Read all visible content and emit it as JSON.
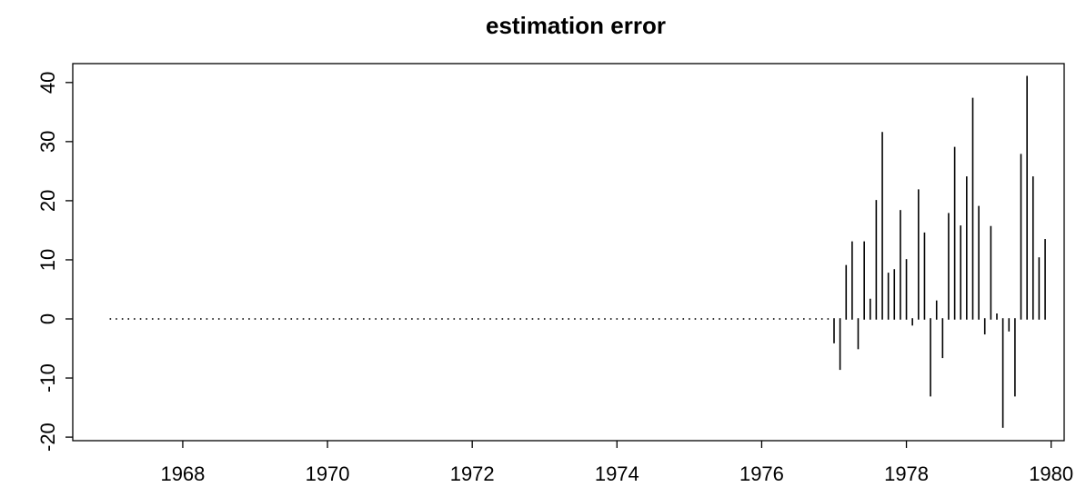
{
  "chart_data": {
    "type": "spike",
    "title": "estimation error",
    "color": "#000000",
    "x": [
      1967,
      1967.083,
      1967.167,
      1967.25,
      1967.333,
      1967.417,
      1967.5,
      1967.583,
      1967.667,
      1967.75,
      1967.833,
      1967.917,
      1968,
      1968.083,
      1968.167,
      1968.25,
      1968.333,
      1968.417,
      1968.5,
      1968.583,
      1968.667,
      1968.75,
      1968.833,
      1968.917,
      1969,
      1969.083,
      1969.167,
      1969.25,
      1969.333,
      1969.417,
      1969.5,
      1969.583,
      1969.667,
      1969.75,
      1969.833,
      1969.917,
      1970,
      1970.083,
      1970.167,
      1970.25,
      1970.333,
      1970.417,
      1970.5,
      1970.583,
      1970.667,
      1970.75,
      1970.833,
      1970.917,
      1971,
      1971.083,
      1971.167,
      1971.25,
      1971.333,
      1971.417,
      1971.5,
      1971.583,
      1971.667,
      1971.75,
      1971.833,
      1971.917,
      1972,
      1972.083,
      1972.167,
      1972.25,
      1972.333,
      1972.417,
      1972.5,
      1972.583,
      1972.667,
      1972.75,
      1972.833,
      1972.917,
      1973,
      1973.083,
      1973.167,
      1973.25,
      1973.333,
      1973.417,
      1973.5,
      1973.583,
      1973.667,
      1973.75,
      1973.833,
      1973.917,
      1974,
      1974.083,
      1974.167,
      1974.25,
      1974.333,
      1974.417,
      1974.5,
      1974.583,
      1974.667,
      1974.75,
      1974.833,
      1974.917,
      1975,
      1975.083,
      1975.167,
      1975.25,
      1975.333,
      1975.417,
      1975.5,
      1975.583,
      1975.667,
      1975.75,
      1975.833,
      1975.917,
      1976,
      1976.083,
      1976.167,
      1976.25,
      1976.333,
      1976.417,
      1976.5,
      1976.583,
      1976.667,
      1976.75,
      1976.833,
      1976.917,
      1977,
      1977.083,
      1977.167,
      1977.25,
      1977.333,
      1977.417,
      1977.5,
      1977.583,
      1977.667,
      1977.75,
      1977.833,
      1977.917,
      1978,
      1978.083,
      1978.167,
      1978.25,
      1978.333,
      1978.417,
      1978.5,
      1978.583,
      1978.667,
      1978.75,
      1978.833,
      1978.917,
      1979,
      1979.083,
      1979.167,
      1979.25,
      1979.333,
      1979.417,
      1979.5,
      1979.583,
      1979.667,
      1979.75,
      1979.833,
      1979.917
    ],
    "values": [
      0,
      0,
      0,
      0,
      0,
      0,
      0,
      0,
      0,
      0,
      0,
      0,
      0,
      0,
      0,
      0,
      0,
      0,
      0,
      0,
      0,
      0,
      0,
      0,
      0,
      0,
      0,
      0,
      0,
      0,
      0,
      0,
      0,
      0,
      0,
      0,
      0,
      0,
      0,
      0,
      0,
      0,
      0,
      0,
      0,
      0,
      0,
      0,
      0,
      0,
      0,
      0,
      0,
      0,
      0,
      0,
      0,
      0,
      0,
      0,
      0,
      0,
      0,
      0,
      0,
      0,
      0,
      0,
      0,
      0,
      0,
      0,
      0,
      0,
      0,
      0,
      0,
      0,
      0,
      0,
      0,
      0,
      0,
      0,
      0,
      0,
      0,
      0,
      0,
      0,
      0,
      0,
      0,
      0,
      0,
      0,
      0,
      0,
      0,
      0,
      0,
      0,
      0,
      0,
      0,
      0,
      0,
      0,
      0,
      0,
      0,
      0,
      0,
      0,
      0,
      0,
      0,
      0,
      0,
      0,
      -4,
      -8.5,
      9,
      13,
      -5,
      13,
      3.3,
      20,
      31.5,
      7.7,
      8.3,
      18.3,
      10,
      -1,
      21.8,
      14.5,
      -13,
      3,
      -6.5,
      17.8,
      29,
      15.7,
      24,
      37.3,
      19,
      -2.5,
      15.6,
      0.8,
      -18.3,
      -2,
      -13,
      27.8,
      41,
      24,
      10.3,
      13.4
    ],
    "xlim": [
      1966.48,
      1980.18
    ],
    "ylim": [
      -20.6,
      43.2
    ],
    "xticks": [
      1968,
      1970,
      1972,
      1974,
      1976,
      1978,
      1980
    ],
    "yticks": [
      -20,
      -10,
      0,
      10,
      20,
      30,
      40
    ]
  }
}
